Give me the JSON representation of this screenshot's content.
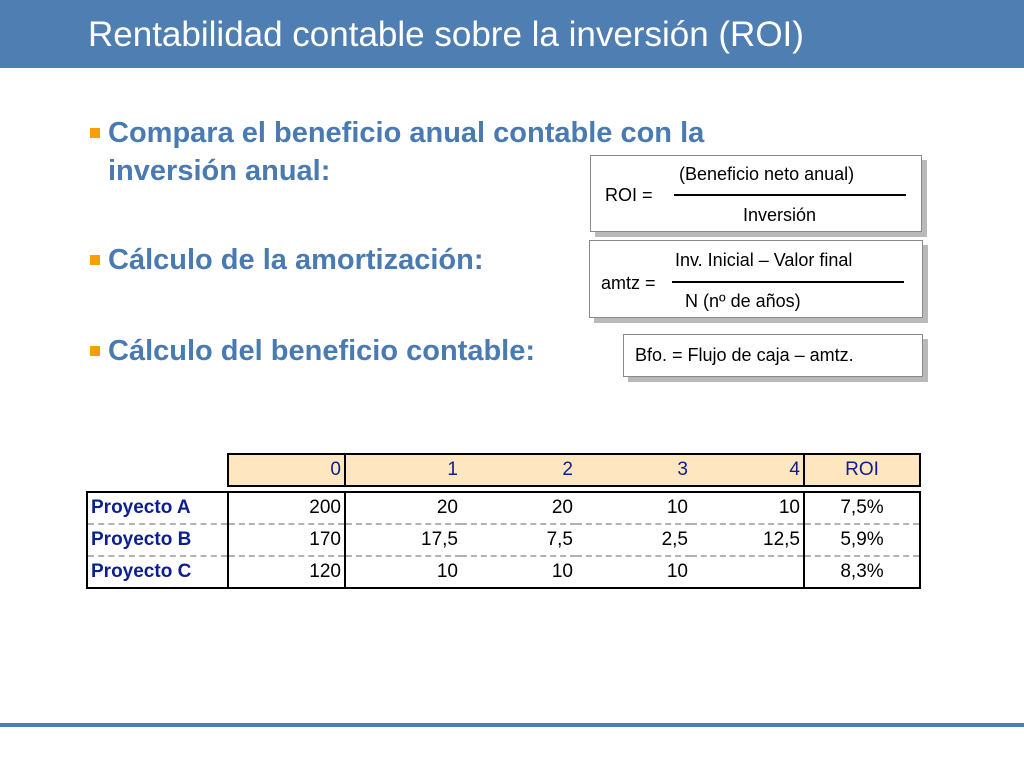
{
  "slide": {
    "title": "Rentabilidad contable sobre la inversión (ROI)",
    "bullets": [
      {
        "line1": "Compara el beneficio anual contable con la",
        "line2": "inversión anual:"
      },
      {
        "line1": "Cálculo de la amortización:"
      },
      {
        "line1": "Cálculo del beneficio contable:"
      }
    ],
    "formulas": {
      "roi": {
        "lhs": "ROI =",
        "numerator": "(Beneficio neto anual)",
        "denominator": "Inversión"
      },
      "amtz": {
        "lhs": "amtz =",
        "numerator": "Inv. Inicial – Valor final",
        "denominator": "N (nº de años)"
      },
      "bfo": {
        "text": "Bfo. = Flujo de caja – amtz."
      }
    },
    "table": {
      "headers": [
        "0",
        "1",
        "2",
        "3",
        "4",
        "ROI"
      ],
      "rows": [
        {
          "name": "Proyecto A",
          "cells": [
            "200",
            "20",
            "20",
            "10",
            "10",
            "7,5%"
          ]
        },
        {
          "name": "Proyecto B",
          "cells": [
            "170",
            "17,5",
            "7,5",
            "2,5",
            "12,5",
            "5,9%"
          ]
        },
        {
          "name": "Proyecto C",
          "cells": [
            "120",
            "10",
            "10",
            "10",
            "",
            "8,3%"
          ]
        }
      ]
    },
    "colors": {
      "title_bar": "#4f7fb2",
      "bullet_text": "#4a7ab2",
      "bullet_marker": "#f5a000",
      "table_header_fill": "#fde6c0",
      "table_label_text": "#0d1f8c"
    }
  }
}
